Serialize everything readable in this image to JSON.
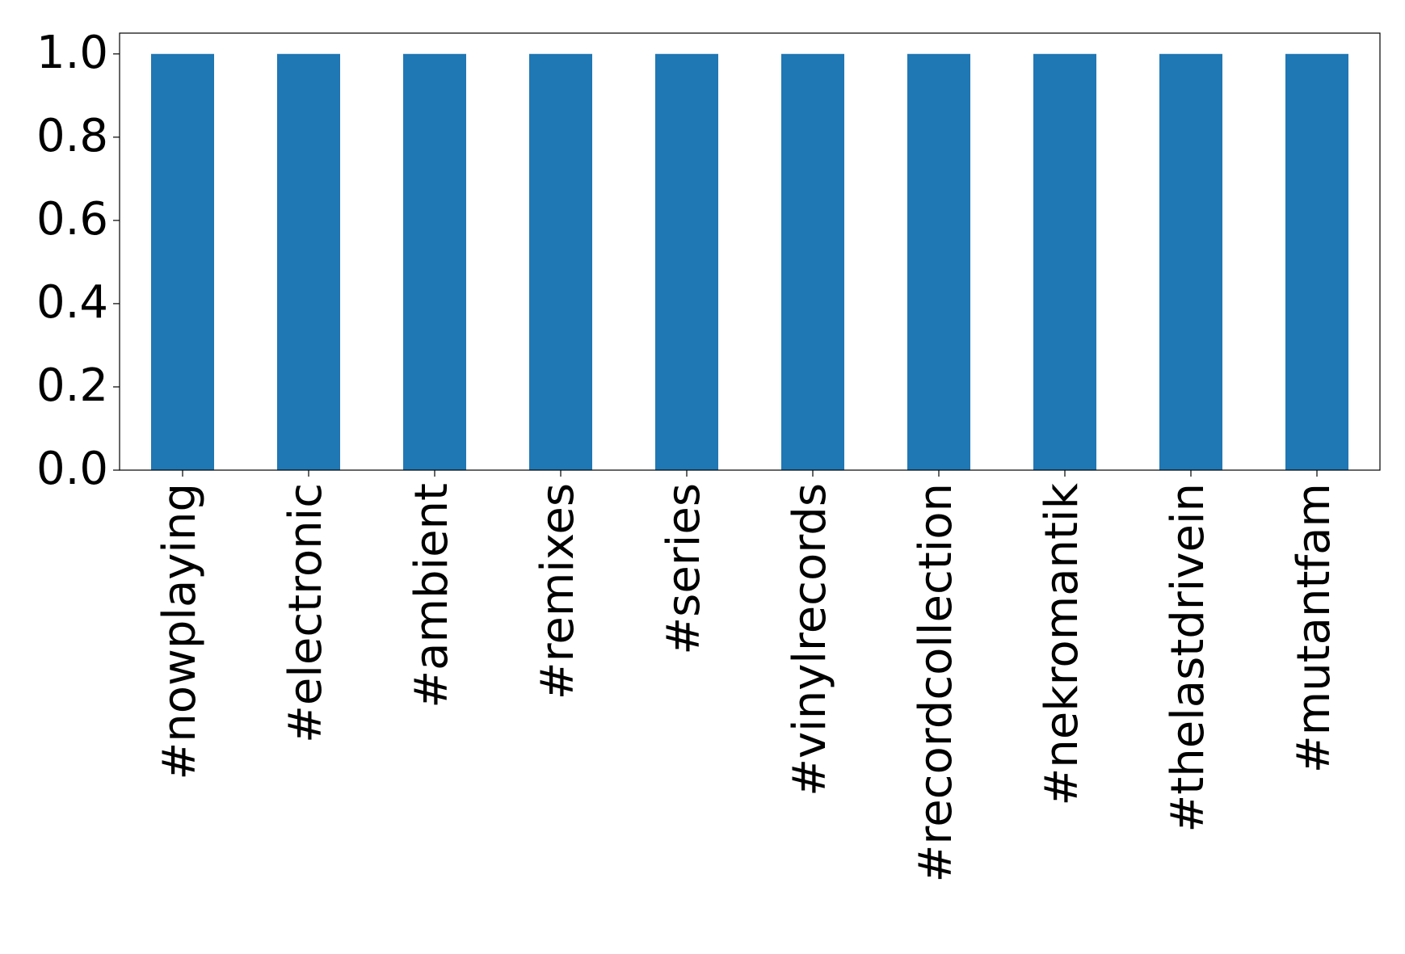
{
  "chart_data": {
    "type": "bar",
    "categories": [
      "#nowplaying",
      "#electronic",
      "#ambient",
      "#remixes",
      "#series",
      "#vinylrecords",
      "#recordcollection",
      "#nekromantik",
      "#thelastdrivein",
      "#mutantfam"
    ],
    "values": [
      1,
      1,
      1,
      1,
      1,
      1,
      1,
      1,
      1,
      1
    ],
    "color": "#1f77b4",
    "ylim": [
      0,
      1.05
    ],
    "yticks": [
      {
        "value": 0,
        "label": "0.0"
      },
      0.2,
      0.4,
      0.6,
      0.8,
      {
        "value": 1,
        "label": "1.0"
      }
    ],
    "grid": false
  }
}
